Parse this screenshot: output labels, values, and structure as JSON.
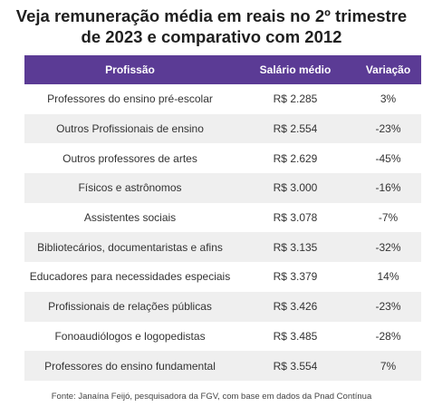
{
  "title": {
    "line1": "Veja remuneração média em reais no 2º trimestre",
    "line2": "de 2023 e comparativo com 2012"
  },
  "table": {
    "headers": [
      "Profissão",
      "Salário médio",
      "Variação"
    ],
    "rows": [
      {
        "profissao": "Professores do ensino pré-escolar",
        "salario": "R$ 2.285",
        "variacao": "3%"
      },
      {
        "profissao": "Outros Profissionais de ensino",
        "salario": "R$ 2.554",
        "variacao": "-23%"
      },
      {
        "profissao": "Outros professores de artes",
        "salario": "R$ 2.629",
        "variacao": "-45%"
      },
      {
        "profissao": "Físicos e astrônomos",
        "salario": "R$ 3.000",
        "variacao": "-16%"
      },
      {
        "profissao": "Assistentes sociais",
        "salario": "R$ 3.078",
        "variacao": "-7%"
      },
      {
        "profissao": "Bibliotecários, documentaristas e afins",
        "salario": "R$ 3.135",
        "variacao": "-32%"
      },
      {
        "profissao": "Educadores para necessidades especiais",
        "salario": "R$ 3.379",
        "variacao": "14%"
      },
      {
        "profissao": "Profissionais de relações públicas",
        "salario": "R$ 3.426",
        "variacao": "-23%"
      },
      {
        "profissao": "Fonoaudiólogos e logopedistas",
        "salario": "R$ 3.485",
        "variacao": "-28%"
      },
      {
        "profissao": "Professores do ensino fundamental",
        "salario": "R$ 3.554",
        "variacao": "7%"
      }
    ]
  },
  "source": "Fonte: Janaína Feijó, pesquisadora da FGV, com base em dados da Pnad Contínua",
  "colors": {
    "header_bg": "#5b3b95",
    "header_text": "#ffffff",
    "stripe": "#efefef"
  }
}
